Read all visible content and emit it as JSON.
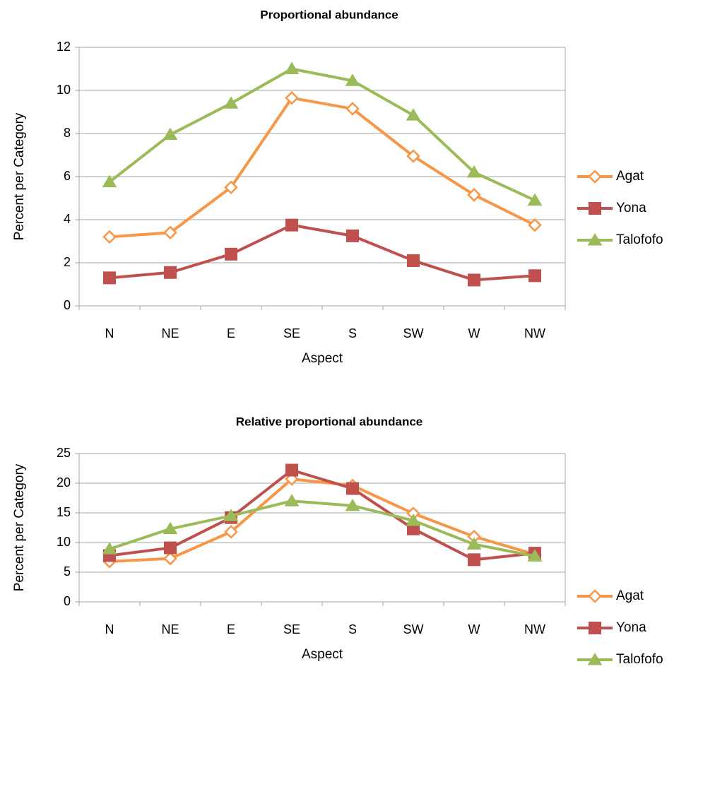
{
  "chart_data": [
    {
      "type": "line",
      "title": "Proportional abundance",
      "xlabel": "Aspect",
      "ylabel": "Percent per Category",
      "ylim": [
        0,
        12
      ],
      "yticks": [
        "0",
        "2",
        "4",
        "6",
        "8",
        "10",
        "12"
      ],
      "categories": [
        "N",
        "NE",
        "E",
        "SE",
        "S",
        "SW",
        "W",
        "NW"
      ],
      "grid": "horizontal",
      "legend_position": "right",
      "series": [
        {
          "name": "Agat",
          "color": "#F79646",
          "marker": "diamond-open",
          "values": [
            3.2,
            3.4,
            5.5,
            9.65,
            9.15,
            6.95,
            5.15,
            3.75
          ]
        },
        {
          "name": "Yona",
          "color": "#C0504D",
          "marker": "square",
          "values": [
            1.3,
            1.55,
            2.4,
            3.75,
            3.25,
            2.1,
            1.2,
            1.4
          ]
        },
        {
          "name": "Talofofo",
          "color": "#9BBB59",
          "marker": "triangle",
          "values": [
            5.75,
            7.95,
            9.4,
            11.0,
            10.45,
            8.85,
            6.2,
            4.9
          ]
        }
      ]
    },
    {
      "type": "line",
      "title": "Relative proportional abundance",
      "xlabel": "Aspect",
      "ylabel": "Percent per Category",
      "ylim": [
        0,
        25
      ],
      "yticks": [
        "0",
        "5",
        "10",
        "15",
        "20",
        "25"
      ],
      "categories": [
        "N",
        "NE",
        "E",
        "SE",
        "S",
        "SW",
        "W",
        "NW"
      ],
      "grid": "horizontal",
      "legend_position": "right",
      "series": [
        {
          "name": "Agat",
          "color": "#F79646",
          "marker": "diamond-open",
          "values": [
            6.8,
            7.3,
            11.8,
            20.7,
            19.6,
            14.9,
            11.0,
            8.0
          ]
        },
        {
          "name": "Yona",
          "color": "#C0504D",
          "marker": "square",
          "values": [
            7.8,
            9.1,
            14.2,
            22.2,
            19.1,
            12.3,
            7.1,
            8.2
          ]
        },
        {
          "name": "Talofofo",
          "color": "#9BBB59",
          "marker": "triangle",
          "values": [
            8.9,
            12.3,
            14.5,
            17.0,
            16.2,
            13.7,
            9.7,
            7.7
          ]
        }
      ]
    }
  ]
}
